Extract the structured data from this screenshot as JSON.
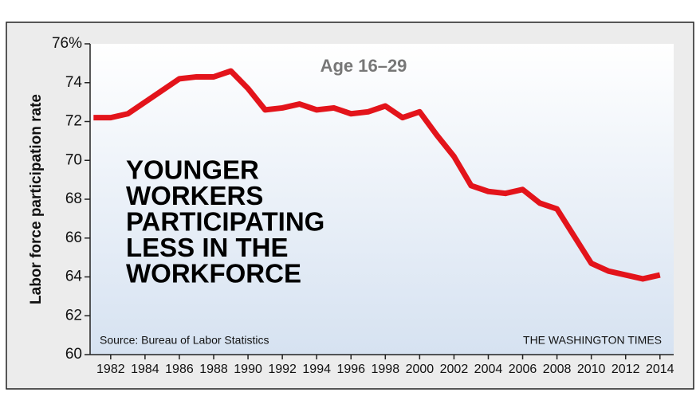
{
  "chart_data": {
    "type": "line",
    "subtitle": "Age 16–29",
    "headline": [
      "YOUNGER",
      "WORKERS",
      "PARTICIPATING",
      "LESS IN THE",
      "WORKFORCE"
    ],
    "y_label": "Labor force participation rate",
    "source": "Source: Bureau of Labor Statistics",
    "credit": "THE WASHINGTON TIMES",
    "x": [
      1981,
      1982,
      1983,
      1984,
      1985,
      1986,
      1987,
      1988,
      1989,
      1990,
      1991,
      1992,
      1993,
      1994,
      1995,
      1996,
      1997,
      1998,
      1999,
      2000,
      2001,
      2002,
      2003,
      2004,
      2005,
      2006,
      2007,
      2008,
      2009,
      2010,
      2011,
      2012,
      2013,
      2014
    ],
    "series": [
      {
        "color": "#e3141b",
        "values": [
          72.2,
          72.2,
          72.4,
          73.0,
          73.6,
          74.2,
          74.3,
          74.3,
          74.6,
          73.7,
          72.6,
          72.7,
          72.9,
          72.6,
          72.7,
          72.4,
          72.5,
          72.8,
          72.2,
          72.5,
          71.3,
          70.2,
          68.7,
          68.4,
          68.3,
          68.5,
          67.8,
          67.5,
          66.1,
          64.7,
          64.3,
          64.1,
          63.9,
          64.1
        ]
      }
    ],
    "xlim": [
      1980.8,
      2014.8
    ],
    "xticks": [
      1982,
      1984,
      1986,
      1988,
      1990,
      1992,
      1994,
      1996,
      1998,
      2000,
      2002,
      2004,
      2006,
      2008,
      2010,
      2012,
      2014
    ],
    "ylim": [
      60,
      76
    ],
    "yticks": [
      60,
      62,
      64,
      66,
      68,
      70,
      72,
      74,
      {
        "value": 76,
        "label": "76%"
      }
    ]
  }
}
